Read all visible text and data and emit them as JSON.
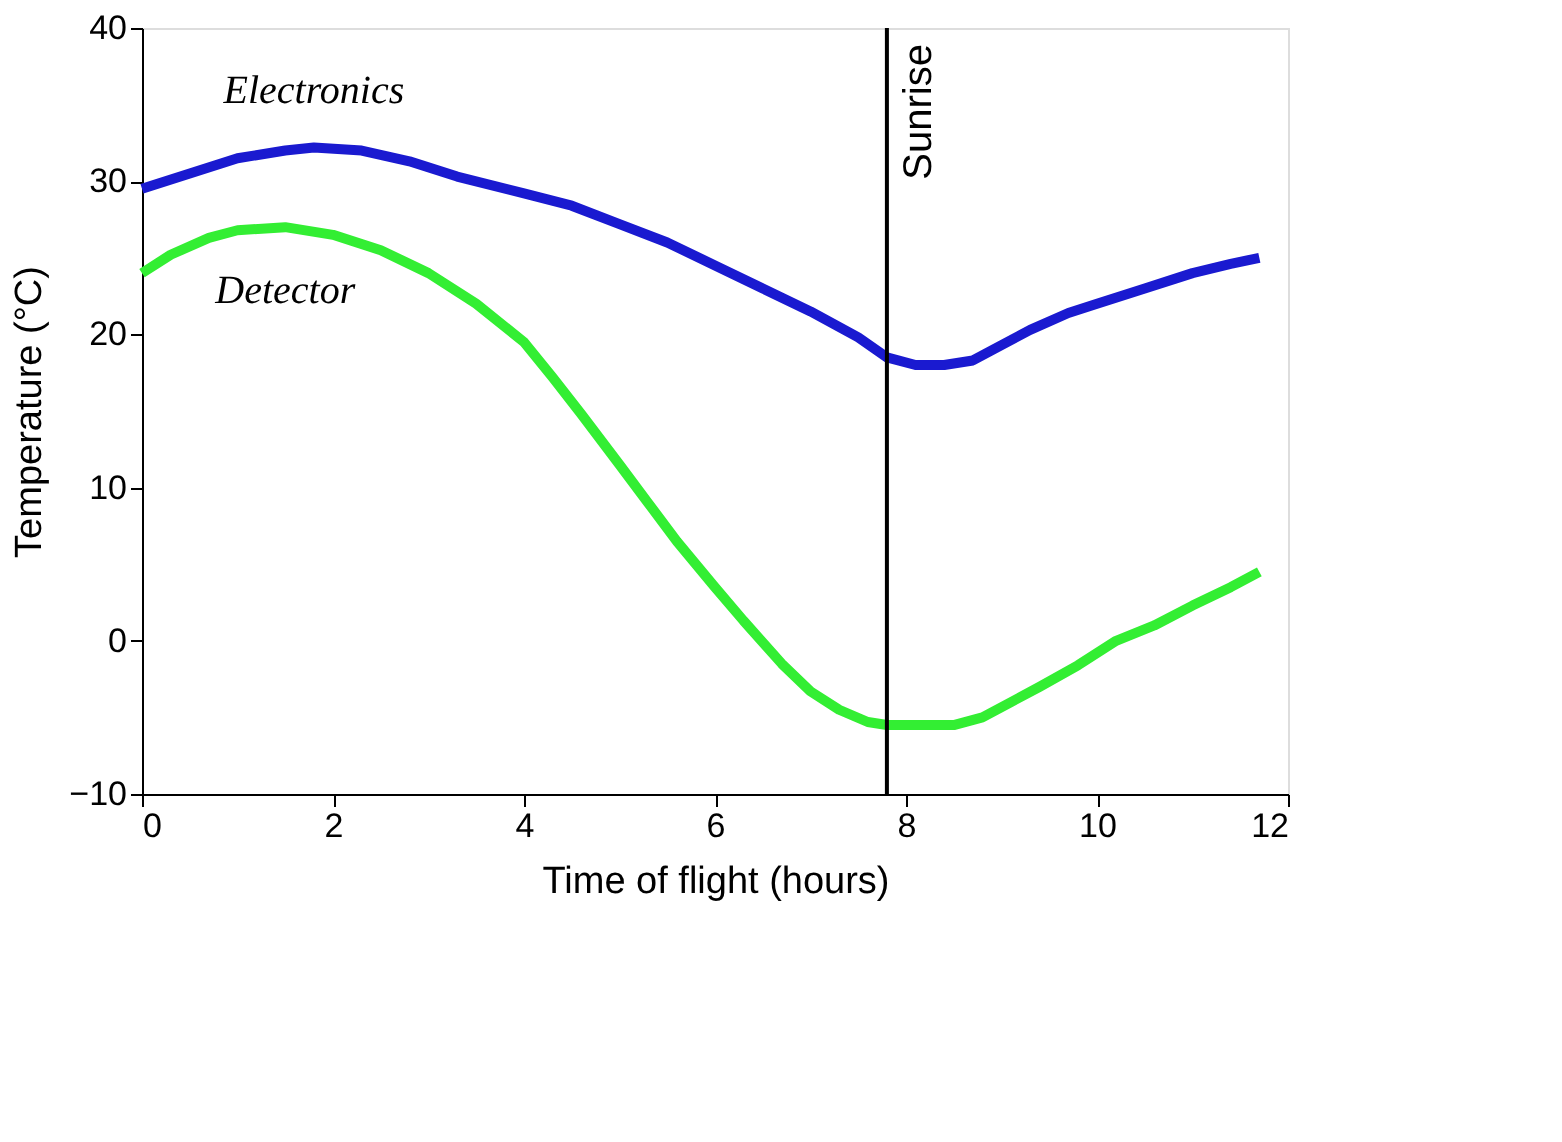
{
  "chart_data": {
    "type": "line",
    "xlabel": "Time of flight (hours)",
    "ylabel": "Temperature (°C)",
    "xlim": [
      0,
      12
    ],
    "ylim": [
      -10,
      40
    ],
    "xticks": [
      0,
      2,
      4,
      6,
      8,
      10,
      12
    ],
    "yticks": [
      -10,
      0,
      10,
      20,
      30,
      40
    ],
    "grid": false,
    "marker": "none",
    "line_style": "solid",
    "series": [
      {
        "name": "Electronics",
        "color": "#1a1ad0",
        "x": [
          0,
          0.5,
          1,
          1.5,
          1.8,
          2.3,
          2.8,
          3.3,
          4,
          4.5,
          5,
          5.5,
          6,
          6.5,
          7,
          7.5,
          7.8,
          8.1,
          8.4,
          8.7,
          9,
          9.3,
          9.7,
          10,
          10.5,
          11,
          11.4,
          11.7
        ],
        "values": [
          29.5,
          30.5,
          31.5,
          32,
          32.2,
          32,
          31.3,
          30.3,
          29.2,
          28.4,
          27.2,
          26,
          24.5,
          23,
          21.5,
          19.8,
          18.5,
          18,
          18,
          18.3,
          19.3,
          20.3,
          21.4,
          22,
          23,
          24,
          24.6,
          25
        ]
      },
      {
        "name": "Detector",
        "color": "#33ee33",
        "x": [
          0,
          0.3,
          0.7,
          1,
          1.5,
          2,
          2.5,
          3,
          3.5,
          4,
          4.3,
          4.6,
          5,
          5.3,
          5.6,
          6,
          6.3,
          6.7,
          7,
          7.3,
          7.6,
          7.8,
          8.2,
          8.5,
          8.8,
          9.1,
          9.4,
          9.8,
          10.2,
          10.6,
          11,
          11.4,
          11.7
        ],
        "values": [
          24,
          25.2,
          26.3,
          26.8,
          27,
          26.5,
          25.5,
          24,
          22,
          19.5,
          17.2,
          14.8,
          11.5,
          9,
          6.5,
          3.5,
          1.3,
          -1.5,
          -3.3,
          -4.5,
          -5.3,
          -5.5,
          -5.5,
          -5.5,
          -5,
          -4,
          -3,
          -1.6,
          0,
          1,
          2.3,
          3.5,
          4.5
        ]
      }
    ],
    "ref_lines": [
      {
        "axis": "x",
        "value": 7.8,
        "label": "Sunrise",
        "color": "#000000",
        "line_style": "solid"
      }
    ]
  }
}
